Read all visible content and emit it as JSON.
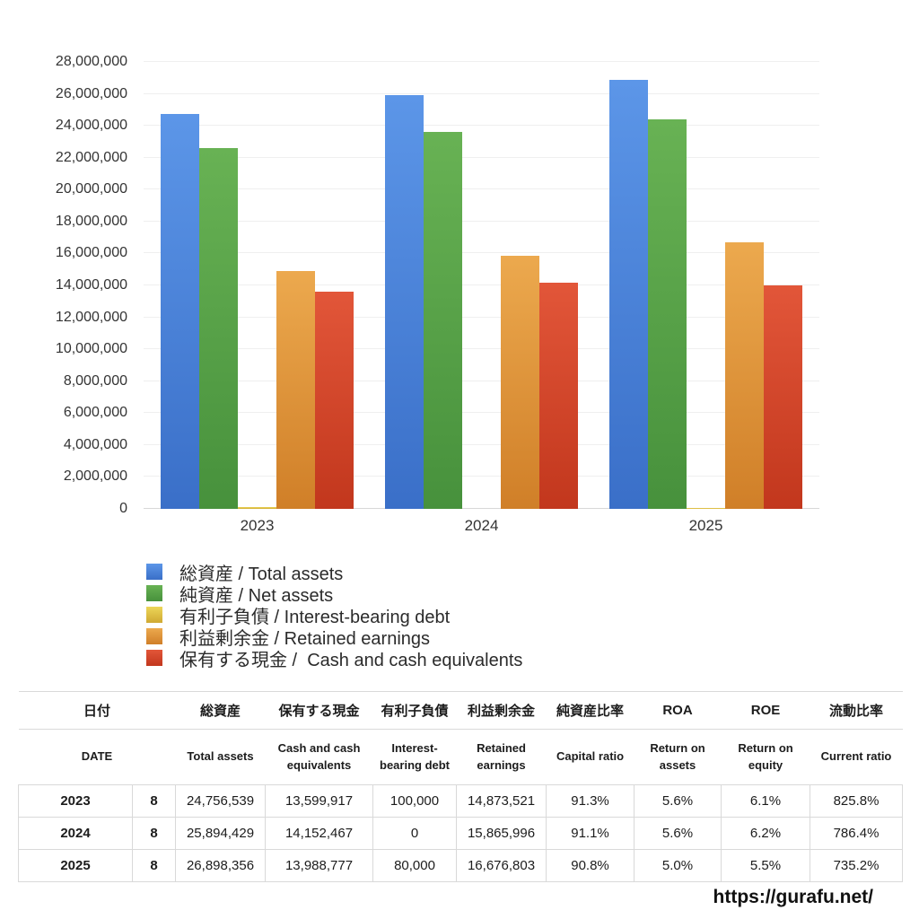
{
  "chart_data": {
    "type": "bar",
    "title": "",
    "categories": [
      "2023",
      "2024",
      "2025"
    ],
    "series": [
      {
        "name": "総資産 / Total assets",
        "values": [
          24756539,
          25894429,
          26898356
        ],
        "color_top": "#5c96e8",
        "color_bottom": "#3a6fc8"
      },
      {
        "name": "純資産 / Net assets",
        "values": [
          22602720,
          23589825,
          24423707
        ],
        "color_top": "#68b254",
        "color_bottom": "#47913c"
      },
      {
        "name": "有利子負債 / Interest-bearing debt",
        "values": [
          100000,
          0,
          80000
        ],
        "color_top": "#ecd658",
        "color_bottom": "#d0a933"
      },
      {
        "name": "利益剰余金 / Retained earnings",
        "values": [
          14873521,
          15865996,
          16676803
        ],
        "color_top": "#eca94e",
        "color_bottom": "#d07f28"
      },
      {
        "name": "保有する現金 /  Cash and cash equivalents",
        "values": [
          13599917,
          14152467,
          13988777
        ],
        "color_top": "#e25639",
        "color_bottom": "#c2371d"
      }
    ],
    "xlabel": "",
    "ylabel": "",
    "ylim": [
      0,
      28000000
    ],
    "ytick_step": 2000000,
    "ytick_labels": [
      "0",
      "2,000,000",
      "4,000,000",
      "6,000,000",
      "8,000,000",
      "10,000,000",
      "12,000,000",
      "14,000,000",
      "16,000,000",
      "18,000,000",
      "20,000,000",
      "22,000,000",
      "24,000,000",
      "26,000,000",
      "28,000,000"
    ],
    "grid": true,
    "legend_position": "bottom-left",
    "gridline_color": "#efefef",
    "baseline_color": "#d7d7d7"
  },
  "table": {
    "header_ja": [
      "日付",
      "総資産",
      "保有する現金",
      "有利子負債",
      "利益剰余金",
      "純資産比率",
      "ROA",
      "ROE",
      "流動比率"
    ],
    "header_en": [
      "DATE",
      "Total assets",
      "Cash and cash equivalents",
      "Interest-bearing debt",
      "Retained earnings",
      "Capital ratio",
      "Return on assets",
      "Return on equity",
      "Current ratio"
    ],
    "rows": [
      {
        "year": "2023",
        "month": "8",
        "values": [
          "24,756,539",
          "13,599,917",
          "100,000",
          "14,873,521",
          "91.3%",
          "5.6%",
          "6.1%",
          "825.8%"
        ]
      },
      {
        "year": "2024",
        "month": "8",
        "values": [
          "25,894,429",
          "14,152,467",
          "0",
          "15,865,996",
          "91.1%",
          "5.6%",
          "6.2%",
          "786.4%"
        ]
      },
      {
        "year": "2025",
        "month": "8",
        "values": [
          "26,898,356",
          "13,988,777",
          "80,000",
          "16,676,803",
          "90.8%",
          "5.0%",
          "5.5%",
          "735.2%"
        ]
      }
    ]
  },
  "footer": {
    "url": "https://gurafu.net/"
  }
}
